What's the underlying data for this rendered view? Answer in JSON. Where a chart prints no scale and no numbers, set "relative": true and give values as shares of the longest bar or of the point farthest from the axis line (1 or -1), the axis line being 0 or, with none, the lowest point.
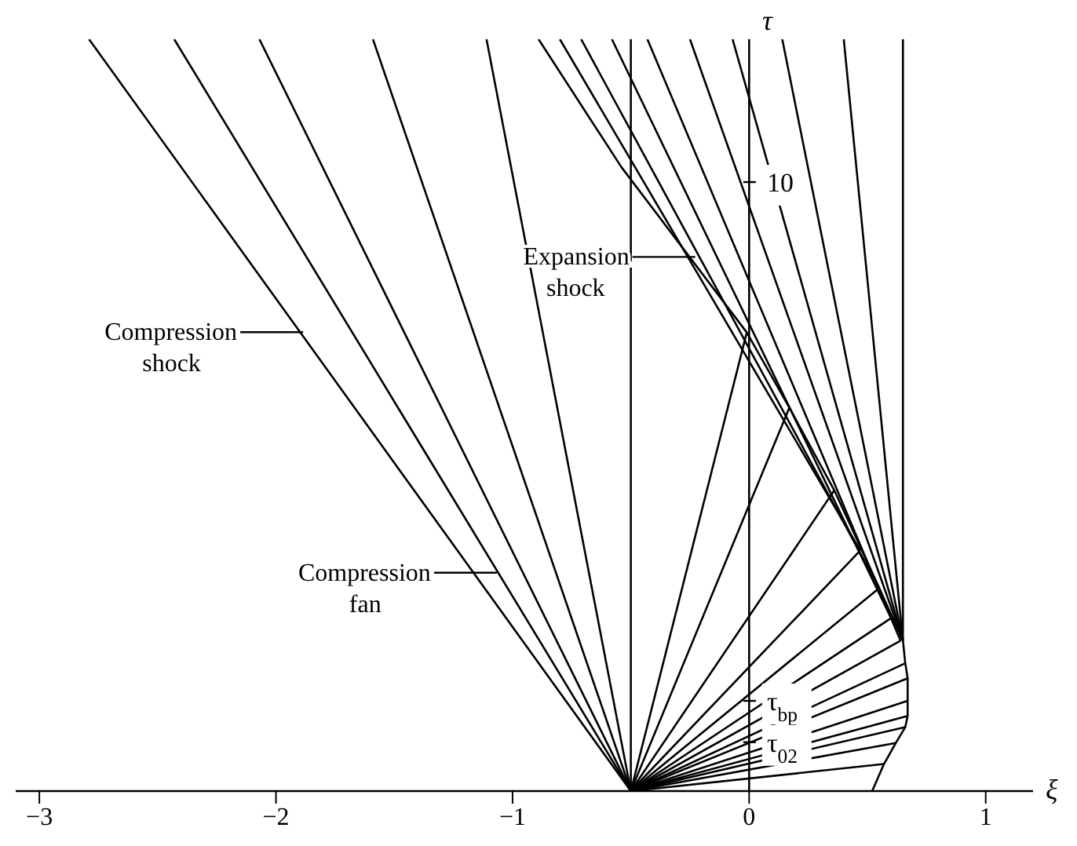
{
  "chart_data": {
    "type": "line",
    "xlabel": "ξ",
    "ylabel": "τ",
    "relative": true,
    "xlim": [
      -3.1,
      1.2
    ],
    "xticks": [
      -3,
      -2,
      -1,
      0,
      1
    ],
    "annotations": [
      {
        "text": "Compression shock",
        "x": -1.89,
        "y": 0.6
      },
      {
        "text": "Compression fan",
        "x": -1.07,
        "y": 0.28
      },
      {
        "text": "Expansion shock",
        "x": -0.23,
        "y": 0.7
      },
      {
        "text": "10",
        "x": 0,
        "y": 0.81
      },
      {
        "text": "τ$_{bp}$",
        "x": 0,
        "y": 0.12
      },
      {
        "text": "τ$_{02}$",
        "x": 0,
        "y": 0.065
      }
    ],
    "series": [
      {
        "color": "#000000",
        "x": [
          -0.5,
          -2.79
        ],
        "values": [
          0,
          1
        ]
      },
      {
        "color": "#000000",
        "x": [
          -0.5,
          -2.43
        ],
        "values": [
          0,
          1
        ]
      },
      {
        "color": "#000000",
        "x": [
          -0.5,
          -2.07
        ],
        "values": [
          0,
          1
        ]
      },
      {
        "color": "#000000",
        "x": [
          -0.5,
          -1.59
        ],
        "values": [
          0,
          1
        ]
      },
      {
        "color": "#000000",
        "x": [
          -0.5,
          -1.11
        ],
        "values": [
          0,
          1
        ]
      },
      {
        "color": "#000000",
        "x": [
          -0.5,
          -0.5
        ],
        "values": [
          0,
          1
        ]
      },
      {
        "color": "#000000",
        "x": [
          -0.5,
          -0.01
        ],
        "values": [
          0,
          0.61
        ]
      },
      {
        "color": "#000000",
        "x": [
          -0.5,
          0.17
        ],
        "values": [
          0,
          0.51
        ]
      },
      {
        "color": "#000000",
        "x": [
          -0.5,
          0.36
        ],
        "values": [
          0,
          0.4
        ]
      },
      {
        "color": "#000000",
        "x": [
          -0.5,
          0.47
        ],
        "values": [
          0,
          0.32
        ]
      },
      {
        "color": "#000000",
        "x": [
          -0.5,
          0.55
        ],
        "values": [
          0,
          0.27
        ]
      },
      {
        "color": "#000000",
        "x": [
          -0.5,
          0.6
        ],
        "values": [
          0,
          0.23
        ]
      },
      {
        "color": "#000000",
        "x": [
          -0.5,
          0.64
        ],
        "values": [
          0,
          0.2
        ]
      },
      {
        "color": "#000000",
        "x": [
          -0.5,
          0.66
        ],
        "values": [
          0,
          0.17
        ]
      },
      {
        "color": "#000000",
        "x": [
          -0.5,
          0.67
        ],
        "values": [
          0,
          0.15
        ]
      },
      {
        "color": "#000000",
        "x": [
          -0.5,
          0.67
        ],
        "values": [
          0,
          0.12
        ]
      },
      {
        "color": "#000000",
        "x": [
          -0.5,
          0.67
        ],
        "values": [
          0,
          0.1
        ]
      },
      {
        "color": "#000000",
        "x": [
          -0.5,
          0.66
        ],
        "values": [
          0,
          0.085
        ]
      },
      {
        "color": "#000000",
        "x": [
          -0.5,
          0.62
        ],
        "values": [
          0,
          0.064
        ]
      },
      {
        "color": "#000000",
        "x": [
          -0.5,
          0.57
        ],
        "values": [
          0,
          0.036
        ]
      },
      {
        "color": "#000000",
        "x": [
          0.52,
          0.57,
          0.62,
          0.66,
          0.67,
          0.67,
          0.66,
          0.65,
          0.65
        ],
        "values": [
          0,
          0.036,
          0.064,
          0.085,
          0.1,
          0.15,
          0.17,
          0.2,
          1
        ]
      },
      {
        "color": "#000000",
        "x": [
          0.65,
          0.55,
          0.36,
          0.17,
          -0.01,
          -0.54,
          -0.89
        ],
        "values": [
          0.2,
          0.27,
          0.4,
          0.51,
          0.61,
          0.83,
          1
        ]
      },
      {
        "color": "#000000",
        "x": [
          0.47,
          -0.8
        ],
        "values": [
          0.32,
          1
        ]
      },
      {
        "color": "#000000",
        "x": [
          0.55,
          -0.71
        ],
        "values": [
          0.27,
          1
        ]
      },
      {
        "color": "#000000",
        "x": [
          0.6,
          -0.58
        ],
        "values": [
          0.23,
          1
        ]
      },
      {
        "color": "#000000",
        "x": [
          0.64,
          -0.43
        ],
        "values": [
          0.2,
          1
        ]
      },
      {
        "color": "#000000",
        "x": [
          0.65,
          -0.25
        ],
        "values": [
          0.2,
          1
        ]
      },
      {
        "color": "#000000",
        "x": [
          0.65,
          -0.07
        ],
        "values": [
          0.2,
          1
        ]
      },
      {
        "color": "#000000",
        "x": [
          0.65,
          0.14
        ],
        "values": [
          0.2,
          1
        ]
      },
      {
        "color": "#000000",
        "x": [
          0.65,
          0.4
        ],
        "values": [
          0.2,
          1
        ]
      }
    ]
  }
}
